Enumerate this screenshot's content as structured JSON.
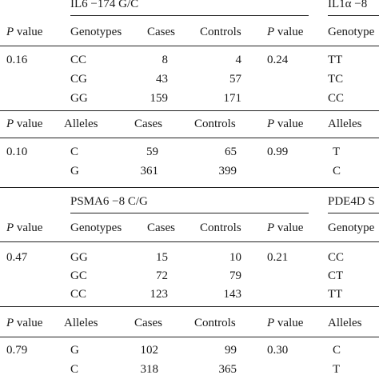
{
  "blocks": [
    {
      "gene_left": "IL6 −174 G/C",
      "gene_right": "IL1α −8",
      "p_label": "P",
      "p_suffix": " value",
      "headers": [
        "Genotypes",
        "Cases",
        "Controls"
      ],
      "header_right": "Genotype",
      "p_left": "0.16",
      "p_right": "0.24",
      "rows": [
        {
          "g": "CC",
          "cases": "8",
          "controls": "4",
          "rg": "TT"
        },
        {
          "g": "CG",
          "cases": "43",
          "controls": "57",
          "rg": "TC"
        },
        {
          "g": "GG",
          "cases": "159",
          "controls": "171",
          "rg": "CC"
        }
      ],
      "allele_headers": [
        "Alleles",
        "Cases",
        "Controls"
      ],
      "allele_header_right": "Alleles",
      "allele_p_left": "0.10",
      "allele_p_right": "0.99",
      "allele_rows": [
        {
          "a": "C",
          "cases": "59",
          "controls": "65",
          "ra": "T"
        },
        {
          "a": "G",
          "cases": "361",
          "controls": "399",
          "ra": "C"
        }
      ]
    },
    {
      "gene_left": "PSMA6 −8 C/G",
      "gene_right": "PDE4D S",
      "p_label": "P",
      "p_suffix": " value",
      "headers": [
        "Genotypes",
        "Cases",
        "Controls"
      ],
      "header_right": "Genotype",
      "p_left": "0.47",
      "p_right": "0.21",
      "rows": [
        {
          "g": "GG",
          "cases": "15",
          "controls": "10",
          "rg": "CC"
        },
        {
          "g": "GC",
          "cases": "72",
          "controls": "79",
          "rg": "CT"
        },
        {
          "g": "CC",
          "cases": "123",
          "controls": "143",
          "rg": "TT"
        }
      ],
      "allele_headers": [
        "Alleles",
        "Cases",
        "Controls"
      ],
      "allele_header_right": "Alleles",
      "allele_p_left": "0.79",
      "allele_p_right": "0.30",
      "allele_rows": [
        {
          "a": "G",
          "cases": "102",
          "controls": "99",
          "ra": "C"
        },
        {
          "a": "C",
          "cases": "318",
          "controls": "365",
          "ra": "T"
        }
      ]
    }
  ]
}
